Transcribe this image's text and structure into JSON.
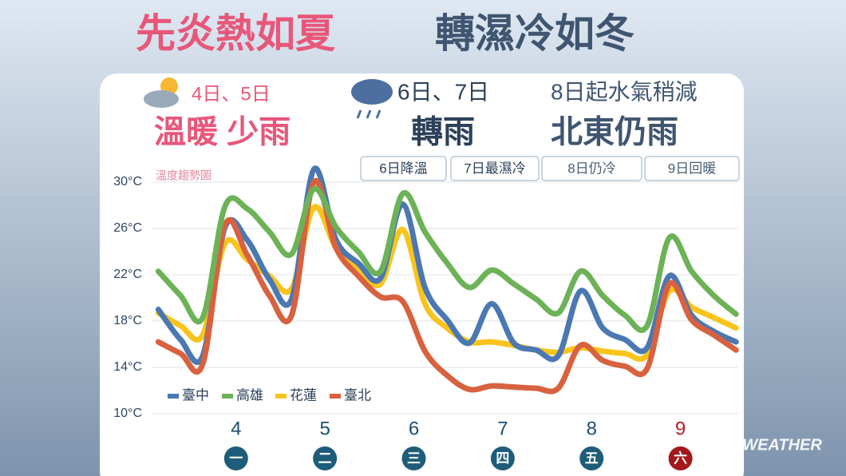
{
  "header": {
    "title_warm": "先炎熱如夏",
    "title_cold": "轉濕冷如冬"
  },
  "panels": [
    {
      "date": "4日、5日",
      "summary": "溫暖 少雨"
    },
    {
      "date": "6日、7日",
      "summary": "轉雨"
    },
    {
      "date": "8日起水氣稍減",
      "summary": "北東仍雨"
    }
  ],
  "notes": [
    "6日降溫",
    "7日最濕冷",
    "8日仍冷",
    "9日回暖"
  ],
  "watermark": "WEATHER",
  "chart_data": {
    "type": "line",
    "title": "溫度趨勢圖",
    "x": [
      3.125,
      3.375,
      3.625,
      3.875,
      4.125,
      4.375,
      4.625,
      4.875,
      5.125,
      5.375,
      5.625,
      5.875,
      6.125,
      6.375,
      6.625,
      6.875,
      7.125,
      7.375,
      7.625,
      7.875,
      8.125,
      8.375,
      8.625,
      8.875,
      9.125,
      9.375,
      9.625
    ],
    "xlim": [
      3.05,
      9.65
    ],
    "xticks": [
      4,
      5,
      6,
      7,
      8,
      9
    ],
    "weekdays": [
      "一",
      "二",
      "三",
      "四",
      "五",
      "六"
    ],
    "ylim": [
      10,
      30
    ],
    "yticks": [
      {
        "value": 10,
        "label": "10°C"
      },
      {
        "value": 14,
        "label": "14°C"
      },
      {
        "value": 18,
        "label": "18°C"
      },
      {
        "value": 22,
        "label": "22°C"
      },
      {
        "value": 26,
        "label": "26°C"
      },
      {
        "value": 30,
        "label": "30°C"
      }
    ],
    "grid": true,
    "series": [
      {
        "name": "臺中",
        "color": "#4b78b2",
        "values": [
          19.0,
          16.4,
          15.0,
          26.1,
          25.0,
          21.6,
          19.9,
          31.1,
          25.0,
          23.0,
          21.7,
          28.1,
          20.9,
          18.1,
          16.1,
          19.5,
          16.1,
          15.5,
          15.0,
          20.6,
          17.4,
          16.4,
          15.7,
          21.9,
          18.5,
          17.1,
          16.2
        ]
      },
      {
        "name": "高雄",
        "color": "#6db257",
        "values": [
          22.3,
          20.2,
          18.3,
          27.9,
          27.7,
          25.7,
          23.8,
          29.4,
          26.1,
          24.0,
          22.3,
          29.0,
          25.7,
          23.0,
          20.9,
          22.4,
          21.2,
          19.9,
          18.7,
          22.3,
          20.2,
          18.5,
          17.6,
          25.2,
          22.3,
          20.2,
          18.6
        ]
      },
      {
        "name": "花蓮",
        "color": "#f8c41c",
        "values": [
          18.7,
          17.6,
          16.8,
          24.7,
          23.3,
          21.9,
          20.8,
          27.8,
          24.3,
          22.6,
          21.2,
          25.9,
          19.5,
          17.4,
          16.2,
          16.2,
          15.9,
          15.5,
          15.3,
          15.7,
          15.4,
          15.2,
          15.1,
          20.6,
          19.2,
          18.3,
          17.4
        ]
      },
      {
        "name": "臺北",
        "color": "#d8613f",
        "values": [
          16.2,
          15.2,
          14.3,
          26.3,
          23.7,
          20.2,
          18.5,
          30.0,
          24.3,
          21.9,
          20.1,
          19.7,
          15.4,
          13.3,
          12.1,
          12.4,
          12.3,
          12.2,
          12.2,
          15.9,
          14.6,
          14.1,
          13.9,
          21.2,
          18.1,
          16.8,
          15.5
        ]
      }
    ]
  }
}
